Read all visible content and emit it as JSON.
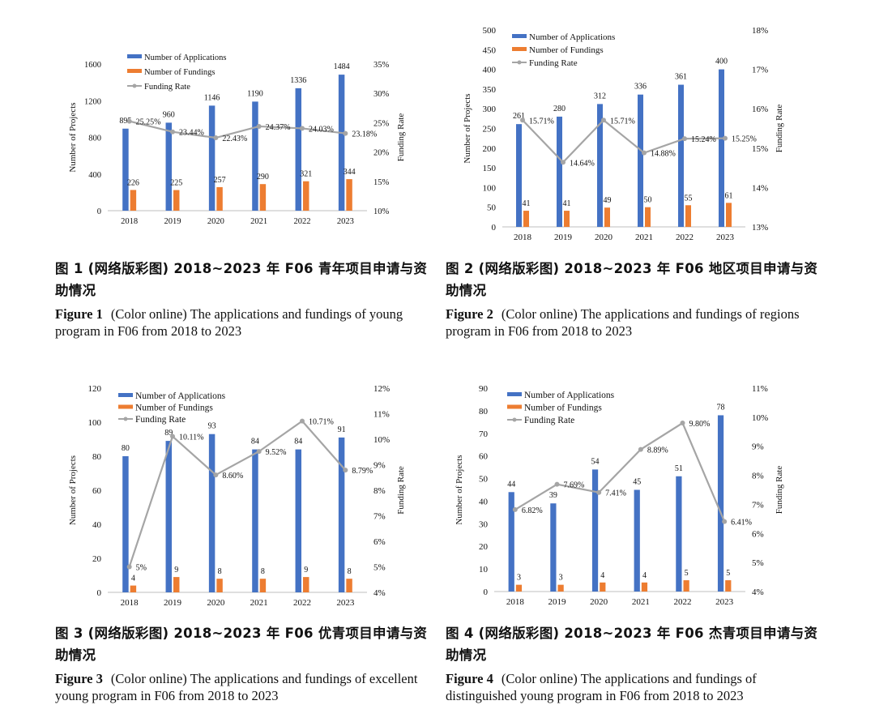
{
  "colors": {
    "applications": "#4472C4",
    "fundings": "#ED7D31",
    "rate": "#A5A5A5"
  },
  "figures": [
    {
      "caption_zh": "图 1 (网络版彩图) 2018~2023 年 F06 青年项目申请与资助情况",
      "caption_en_label": "Figure 1",
      "caption_en_text": "(Color online) The applications and fundings of young program in F06 from 2018 to 2023",
      "chart_data": {
        "type": "bar",
        "categories": [
          "2018",
          "2019",
          "2020",
          "2021",
          "2022",
          "2023"
        ],
        "series": [
          {
            "name": "Number of Applications",
            "values": [
              895,
              960,
              1146,
              1190,
              1336,
              1484
            ],
            "labels": [
              "895",
              "960",
              "1146",
              "1190",
              "1336",
              "1484"
            ]
          },
          {
            "name": "Number of Fundings",
            "values": [
              226,
              225,
              257,
              290,
              321,
              344
            ],
            "labels": [
              "226",
              "225",
              "257",
              "290",
              "321",
              "344"
            ]
          },
          {
            "name": "Funding Rate",
            "type": "line",
            "axis": "right",
            "values": [
              25.25,
              23.44,
              22.43,
              24.37,
              24.03,
              23.18
            ],
            "labels": [
              "25.25%",
              "23.44%",
              "22.43%",
              "24.37%",
              "24.03%",
              "23.18%"
            ]
          }
        ],
        "ylabel": "Number of Projects",
        "y2label": "Funding Rate",
        "ylim": [
          0,
          1600
        ],
        "yticks": [
          "0",
          "400",
          "800",
          "1200",
          "1600"
        ],
        "y2lim": [
          10,
          35
        ],
        "y2ticks": [
          "10%",
          "15%",
          "20%",
          "25%",
          "30%",
          "35%"
        ],
        "legend": "top-left"
      }
    },
    {
      "caption_zh": "图 2 (网络版彩图) 2018~2023 年 F06 地区项目申请与资助情况",
      "caption_en_label": "Figure 2",
      "caption_en_text": "(Color online) The applications and fundings of regions program in F06 from 2018 to 2023",
      "chart_data": {
        "type": "bar",
        "categories": [
          "2018",
          "2019",
          "2020",
          "2021",
          "2022",
          "2023"
        ],
        "series": [
          {
            "name": "Number of Applications",
            "values": [
              261,
              280,
              312,
              336,
              361,
              400
            ],
            "labels": [
              "261",
              "280",
              "312",
              "336",
              "361",
              "400"
            ]
          },
          {
            "name": "Number of Fundings",
            "values": [
              41,
              41,
              49,
              50,
              55,
              61
            ],
            "labels": [
              "41",
              "41",
              "49",
              "50",
              "55",
              "61"
            ]
          },
          {
            "name": "Funding Rate",
            "type": "line",
            "axis": "right",
            "values": [
              15.71,
              14.64,
              15.71,
              14.88,
              15.24,
              15.25
            ],
            "labels": [
              "15.71%",
              "14.64%",
              "15.71%",
              "14.88%",
              "15.24%",
              "15.25%"
            ]
          }
        ],
        "ylabel": "Number of Projects",
        "y2label": "Funding Rate",
        "ylim": [
          0,
          500
        ],
        "yticks": [
          "0",
          "50",
          "100",
          "150",
          "200",
          "250",
          "300",
          "350",
          "400",
          "450",
          "500"
        ],
        "y2lim": [
          13,
          18
        ],
        "y2ticks": [
          "13%",
          "14%",
          "15%",
          "16%",
          "17%",
          "18%"
        ],
        "legend": "top-left"
      }
    },
    {
      "caption_zh": "图 3 (网络版彩图) 2018~2023 年 F06 优青项目申请与资助情况",
      "caption_en_label": "Figure 3",
      "caption_en_text": "(Color online) The applications and fundings of excellent young program in F06 from 2018 to 2023",
      "chart_data": {
        "type": "bar",
        "categories": [
          "2018",
          "2019",
          "2020",
          "2021",
          "2022",
          "2023"
        ],
        "series": [
          {
            "name": "Number of Applications",
            "values": [
              80,
              89,
              93,
              84,
              84,
              91
            ],
            "labels": [
              "80",
              "89",
              "93",
              "84",
              "84",
              "91"
            ]
          },
          {
            "name": "Number of Fundings",
            "values": [
              4,
              9,
              8,
              8,
              9,
              8
            ],
            "labels": [
              "4",
              "9",
              "8",
              "8",
              "9",
              "8"
            ]
          },
          {
            "name": "Funding Rate",
            "type": "line",
            "axis": "right",
            "values": [
              5,
              10.11,
              8.6,
              9.52,
              10.71,
              8.79
            ],
            "labels": [
              "5%",
              "10.11%",
              "8.60%",
              "9.52%",
              "10.71%",
              "8.79%"
            ]
          }
        ],
        "ylabel": "Number of Projects",
        "y2label": "Funding Rate",
        "ylim": [
          0,
          120
        ],
        "yticks": [
          "0",
          "20",
          "40",
          "60",
          "80",
          "100",
          "120"
        ],
        "y2lim": [
          4,
          12
        ],
        "y2ticks": [
          "4%",
          "5%",
          "6%",
          "7%",
          "8%",
          "9%",
          "10%",
          "11%",
          "12%"
        ],
        "legend": "top-left"
      }
    },
    {
      "caption_zh": "图 4 (网络版彩图) 2018~2023 年 F06 杰青项目申请与资助情况",
      "caption_en_label": "Figure 4",
      "caption_en_text": "(Color online) The applications and fundings of distinguished young program in F06 from 2018 to 2023",
      "chart_data": {
        "type": "bar",
        "categories": [
          "2018",
          "2019",
          "2020",
          "2021",
          "2022",
          "2023"
        ],
        "series": [
          {
            "name": "Number of Applications",
            "values": [
              44,
              39,
              54,
              45,
              51,
              78
            ],
            "labels": [
              "44",
              "39",
              "54",
              "45",
              "51",
              "78"
            ]
          },
          {
            "name": "Number of Fundings",
            "values": [
              3,
              3,
              4,
              4,
              5,
              5
            ],
            "labels": [
              "3",
              "3",
              "4",
              "4",
              "5",
              "5"
            ]
          },
          {
            "name": "Funding Rate",
            "type": "line",
            "axis": "right",
            "values": [
              6.82,
              7.69,
              7.41,
              8.89,
              9.8,
              6.41
            ],
            "labels": [
              "6.82%",
              "7.69%",
              "7.41%",
              "8.89%",
              "9.80%",
              "6.41%"
            ]
          }
        ],
        "ylabel": "Number of Projects",
        "y2label": "Funding Rate",
        "ylim": [
          0,
          90
        ],
        "yticks": [
          "0",
          "10",
          "20",
          "30",
          "40",
          "50",
          "60",
          "70",
          "80",
          "90"
        ],
        "y2lim": [
          4,
          11
        ],
        "y2ticks": [
          "4%",
          "5%",
          "6%",
          "7%",
          "8%",
          "9%",
          "10%",
          "11%"
        ],
        "legend": "top-left"
      }
    }
  ]
}
